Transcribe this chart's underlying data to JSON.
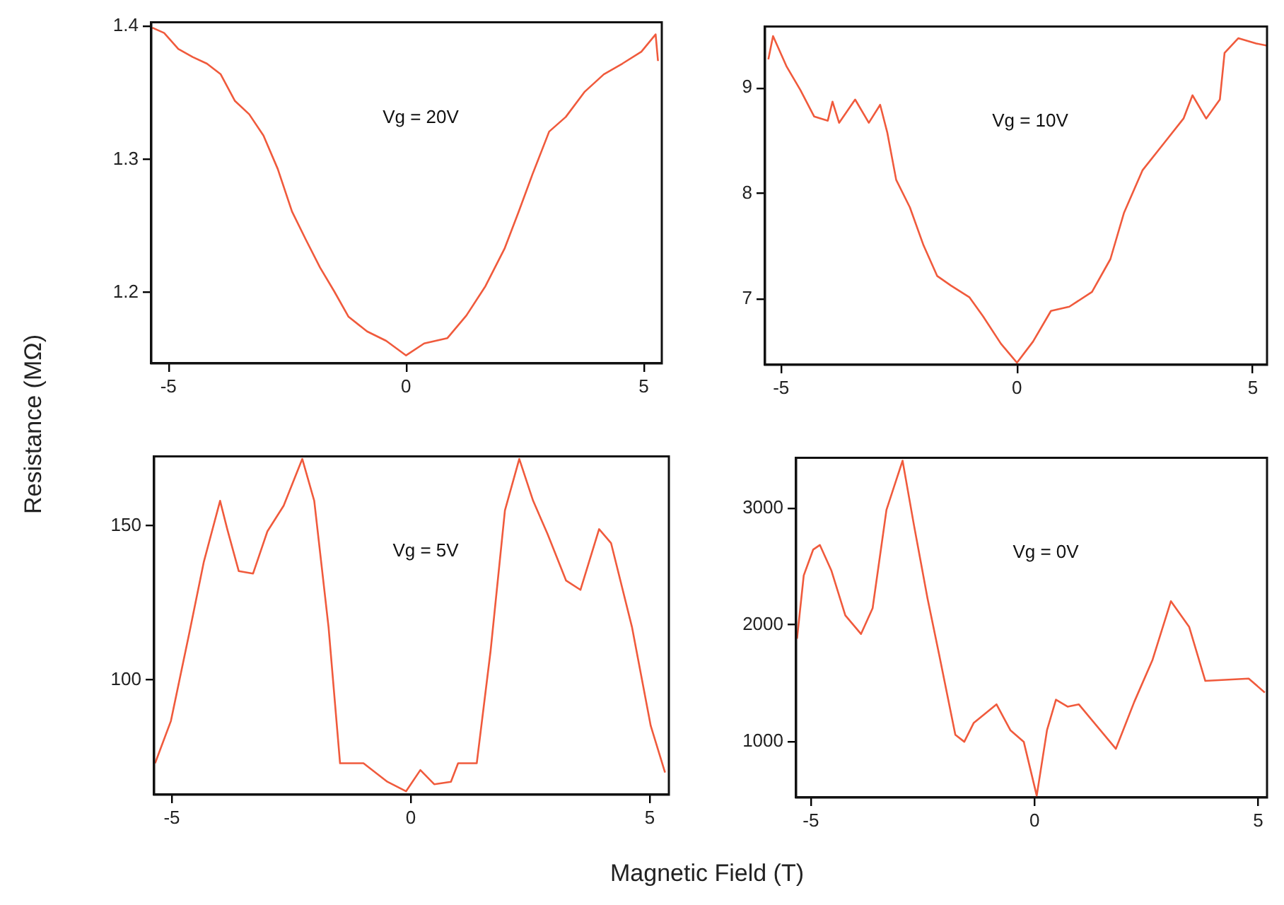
{
  "chart_data": [
    {
      "type": "line",
      "ylabel": "Resistance (MΩ)",
      "annotations": [
        "Vg = 20V"
      ],
      "color": "#f05a3c",
      "xlim": [
        -5.36,
        5.38
      ],
      "xticks": [
        -5,
        0,
        5
      ],
      "ylim": [
        1.147,
        1.403
      ],
      "yticks": [
        1.2,
        1.3,
        1.4
      ],
      "x": [
        -5.34,
        -5.09,
        -4.79,
        -4.49,
        -4.19,
        -3.9,
        -3.6,
        -3.3,
        -3.0,
        -2.7,
        -2.4,
        -2.11,
        -1.81,
        -1.51,
        -1.21,
        -0.82,
        -0.42,
        0,
        0.38,
        0.87,
        1.27,
        1.67,
        2.07,
        2.37,
        2.66,
        3.01,
        3.36,
        3.76,
        4.16,
        4.55,
        4.95,
        5.25,
        5.3
      ],
      "values": [
        1.399,
        1.395,
        1.383,
        1.377,
        1.372,
        1.364,
        1.344,
        1.334,
        1.318,
        1.293,
        1.261,
        1.24,
        1.219,
        1.201,
        1.182,
        1.171,
        1.164,
        1.153,
        1.162,
        1.166,
        1.183,
        1.205,
        1.233,
        1.261,
        1.289,
        1.321,
        1.332,
        1.351,
        1.364,
        1.372,
        1.381,
        1.394,
        1.374
      ]
    },
    {
      "type": "line",
      "annotations": [
        "Vg = 10V"
      ],
      "color": "#f05a3c",
      "xlim": [
        -5.34,
        5.3
      ],
      "xticks": [
        -5,
        0,
        5
      ],
      "ylim": [
        6.38,
        9.58
      ],
      "yticks": [
        7,
        8,
        9
      ],
      "x": [
        -5.27,
        -5.17,
        -4.88,
        -4.59,
        -4.3,
        -4.01,
        -3.91,
        -3.77,
        -3.43,
        -3.14,
        -2.9,
        -2.75,
        -2.56,
        -2.27,
        -1.98,
        -1.69,
        -1.4,
        -1.01,
        -0.72,
        -0.34,
        0,
        0.34,
        0.72,
        1.11,
        1.59,
        1.98,
        2.27,
        2.66,
        3.14,
        3.53,
        3.72,
        4.01,
        4.3,
        4.4,
        4.69,
        5.07,
        5.3
      ],
      "values": [
        9.27,
        9.49,
        9.2,
        8.98,
        8.73,
        8.69,
        8.87,
        8.67,
        8.89,
        8.67,
        8.84,
        8.58,
        8.13,
        7.87,
        7.51,
        7.22,
        7.13,
        7.02,
        6.84,
        6.58,
        6.4,
        6.6,
        6.89,
        6.93,
        7.07,
        7.38,
        7.82,
        8.22,
        8.49,
        8.71,
        8.93,
        8.71,
        8.89,
        9.33,
        9.47,
        9.42,
        9.4
      ]
    },
    {
      "type": "line",
      "xlabel": "Magnetic Field (T)",
      "annotations": [
        "Vg = 5V"
      ],
      "color": "#f05a3c",
      "xlim": [
        -5.37,
        5.4
      ],
      "xticks": [
        -5,
        0,
        5
      ],
      "ylim": [
        62.7,
        172.5
      ],
      "yticks": [
        100,
        150
      ],
      "x": [
        -5.35,
        -5.02,
        -4.63,
        -4.33,
        -3.99,
        -3.84,
        -3.6,
        -3.3,
        -3.0,
        -2.66,
        -2.27,
        -2.02,
        -1.72,
        -1.48,
        -0.99,
        -0.49,
        -0.1,
        0.2,
        0.49,
        0.84,
        0.99,
        1.38,
        1.67,
        1.97,
        2.27,
        2.56,
        2.86,
        3.25,
        3.55,
        3.94,
        4.19,
        4.63,
        5.02,
        5.32
      ],
      "values": [
        72.9,
        86.6,
        115.5,
        138.3,
        158.1,
        148.9,
        135.3,
        134.5,
        148.2,
        156.5,
        171.7,
        158.1,
        117,
        72.9,
        72.9,
        66.9,
        63.8,
        70.7,
        66.1,
        66.9,
        72.9,
        72.9,
        109.4,
        155,
        171.7,
        158.1,
        147.4,
        132.2,
        129.2,
        148.9,
        144.4,
        117,
        85.1,
        69.9
      ]
    },
    {
      "type": "line",
      "annotations": [
        "Vg = 0V"
      ],
      "color": "#f05a3c",
      "xlim": [
        -5.33,
        5.2
      ],
      "xticks": [
        -5,
        0,
        5
      ],
      "ylim": [
        518,
        3430
      ],
      "yticks": [
        1000,
        2000,
        3000
      ],
      "x": [
        -5.31,
        -5.16,
        -4.95,
        -4.8,
        -4.54,
        -4.23,
        -3.88,
        -3.62,
        -3.31,
        -2.95,
        -2.7,
        -2.39,
        -2.13,
        -1.77,
        -1.57,
        -1.36,
        -0.85,
        -0.54,
        -0.24,
        0.05,
        0.28,
        0.48,
        0.74,
        0.99,
        1.82,
        2.23,
        2.64,
        3.05,
        3.46,
        3.82,
        4.79,
        5.15
      ],
      "values": [
        1880,
        2422,
        2643,
        2683,
        2462,
        2080,
        1920,
        2141,
        2984,
        3406,
        2863,
        2221,
        1739,
        1056,
        996,
        1157,
        1317,
        1096,
        996,
        534,
        1096,
        1357,
        1297,
        1317,
        936,
        1337,
        1699,
        2201,
        1980,
        1518,
        1538,
        1418
      ]
    }
  ]
}
